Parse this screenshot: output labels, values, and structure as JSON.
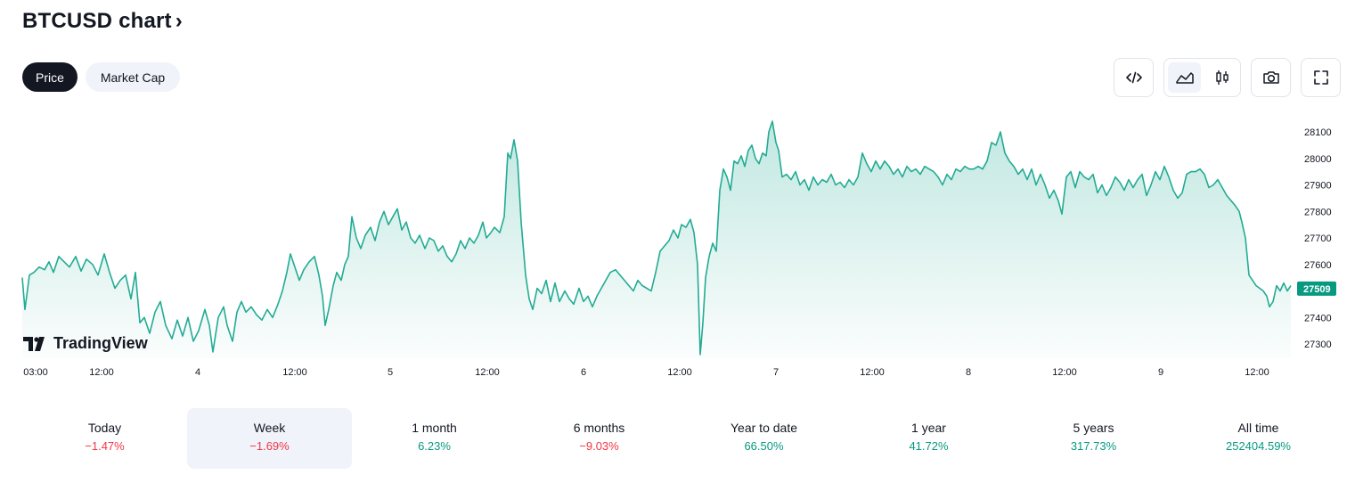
{
  "header": {
    "title": "BTCUSD chart",
    "chevron": "›"
  },
  "tabs": [
    {
      "label": "Price",
      "active": true
    },
    {
      "label": "Market Cap",
      "active": false
    }
  ],
  "toolbar": {
    "embed_icon": "code-icon",
    "area_icon": "area-chart-icon",
    "candles_icon": "candlestick-icon",
    "snapshot_icon": "camera-icon",
    "fullscreen_icon": "fullscreen-icon"
  },
  "logo": {
    "text": "TradingView"
  },
  "colors": {
    "line": "#22ab94",
    "accent": "#089981",
    "negative": "#f23645"
  },
  "chart_data": {
    "type": "area",
    "y_ticks": [
      "28100",
      "28000",
      "27900",
      "27800",
      "27700",
      "27600",
      "27500",
      "27400",
      "27300"
    ],
    "y_range": [
      27250,
      28150
    ],
    "last_price": "27509",
    "x_ticks": [
      "03:00",
      "12:00",
      "4",
      "12:00",
      "5",
      "12:00",
      "6",
      "12:00",
      "7",
      "12:00",
      "8",
      "12:00",
      "9",
      "12:00"
    ],
    "series": [
      {
        "points": [
          [
            0,
            27550
          ],
          [
            3,
            27430
          ],
          [
            8,
            27560
          ],
          [
            13,
            27570
          ],
          [
            19,
            27590
          ],
          [
            25,
            27580
          ],
          [
            30,
            27610
          ],
          [
            35,
            27570
          ],
          [
            41,
            27630
          ],
          [
            47,
            27610
          ],
          [
            53,
            27590
          ],
          [
            60,
            27630
          ],
          [
            66,
            27575
          ],
          [
            72,
            27620
          ],
          [
            79,
            27600
          ],
          [
            85,
            27560
          ],
          [
            92,
            27640
          ],
          [
            98,
            27570
          ],
          [
            104,
            27510
          ],
          [
            110,
            27540
          ],
          [
            116,
            27560
          ],
          [
            122,
            27470
          ],
          [
            127,
            27570
          ],
          [
            132,
            27380
          ],
          [
            137,
            27400
          ],
          [
            143,
            27340
          ],
          [
            149,
            27420
          ],
          [
            155,
            27460
          ],
          [
            161,
            27370
          ],
          [
            168,
            27320
          ],
          [
            174,
            27390
          ],
          [
            180,
            27330
          ],
          [
            186,
            27400
          ],
          [
            192,
            27310
          ],
          [
            198,
            27350
          ],
          [
            205,
            27430
          ],
          [
            210,
            27370
          ],
          [
            214,
            27270
          ],
          [
            220,
            27400
          ],
          [
            226,
            27440
          ],
          [
            230,
            27370
          ],
          [
            236,
            27310
          ],
          [
            241,
            27420
          ],
          [
            246,
            27460
          ],
          [
            251,
            27420
          ],
          [
            257,
            27440
          ],
          [
            263,
            27410
          ],
          [
            269,
            27390
          ],
          [
            275,
            27430
          ],
          [
            281,
            27400
          ],
          [
            287,
            27450
          ],
          [
            292,
            27500
          ],
          [
            297,
            27570
          ],
          [
            301,
            27640
          ],
          [
            306,
            27590
          ],
          [
            311,
            27540
          ],
          [
            316,
            27580
          ],
          [
            322,
            27610
          ],
          [
            328,
            27630
          ],
          [
            333,
            27560
          ],
          [
            337,
            27480
          ],
          [
            340,
            27370
          ],
          [
            344,
            27430
          ],
          [
            349,
            27520
          ],
          [
            353,
            27570
          ],
          [
            358,
            27540
          ],
          [
            362,
            27600
          ],
          [
            366,
            27630
          ],
          [
            370,
            27780
          ],
          [
            375,
            27700
          ],
          [
            380,
            27660
          ],
          [
            385,
            27710
          ],
          [
            391,
            27740
          ],
          [
            396,
            27690
          ],
          [
            401,
            27760
          ],
          [
            406,
            27800
          ],
          [
            411,
            27750
          ],
          [
            416,
            27780
          ],
          [
            421,
            27810
          ],
          [
            426,
            27730
          ],
          [
            431,
            27760
          ],
          [
            436,
            27700
          ],
          [
            441,
            27680
          ],
          [
            446,
            27710
          ],
          [
            452,
            27660
          ],
          [
            457,
            27700
          ],
          [
            462,
            27690
          ],
          [
            467,
            27650
          ],
          [
            472,
            27670
          ],
          [
            477,
            27630
          ],
          [
            482,
            27610
          ],
          [
            487,
            27640
          ],
          [
            492,
            27690
          ],
          [
            497,
            27660
          ],
          [
            502,
            27700
          ],
          [
            507,
            27680
          ],
          [
            512,
            27710
          ],
          [
            517,
            27760
          ],
          [
            521,
            27700
          ],
          [
            526,
            27720
          ],
          [
            530,
            27740
          ],
          [
            536,
            27720
          ],
          [
            541,
            27780
          ],
          [
            545,
            28020
          ],
          [
            548,
            28000
          ],
          [
            552,
            28070
          ],
          [
            556,
            27990
          ],
          [
            560,
            27760
          ],
          [
            565,
            27560
          ],
          [
            569,
            27470
          ],
          [
            573,
            27430
          ],
          [
            578,
            27510
          ],
          [
            583,
            27490
          ],
          [
            588,
            27540
          ],
          [
            593,
            27460
          ],
          [
            598,
            27530
          ],
          [
            603,
            27460
          ],
          [
            609,
            27500
          ],
          [
            614,
            27470
          ],
          [
            619,
            27450
          ],
          [
            625,
            27510
          ],
          [
            630,
            27460
          ],
          [
            635,
            27480
          ],
          [
            640,
            27440
          ],
          [
            645,
            27480
          ],
          [
            650,
            27510
          ],
          [
            655,
            27540
          ],
          [
            660,
            27570
          ],
          [
            666,
            27580
          ],
          [
            671,
            27560
          ],
          [
            676,
            27540
          ],
          [
            681,
            27520
          ],
          [
            686,
            27500
          ],
          [
            691,
            27540
          ],
          [
            696,
            27520
          ],
          [
            701,
            27510
          ],
          [
            706,
            27500
          ],
          [
            711,
            27570
          ],
          [
            716,
            27650
          ],
          [
            721,
            27670
          ],
          [
            726,
            27690
          ],
          [
            731,
            27730
          ],
          [
            736,
            27700
          ],
          [
            740,
            27750
          ],
          [
            745,
            27740
          ],
          [
            750,
            27770
          ],
          [
            754,
            27720
          ],
          [
            758,
            27600
          ],
          [
            761,
            27260
          ],
          [
            764,
            27380
          ],
          [
            767,
            27550
          ],
          [
            771,
            27630
          ],
          [
            775,
            27680
          ],
          [
            779,
            27650
          ],
          [
            783,
            27880
          ],
          [
            787,
            27960
          ],
          [
            791,
            27930
          ],
          [
            795,
            27880
          ],
          [
            799,
            27990
          ],
          [
            803,
            27980
          ],
          [
            807,
            28010
          ],
          [
            811,
            27970
          ],
          [
            815,
            28030
          ],
          [
            819,
            28050
          ],
          [
            823,
            28000
          ],
          [
            827,
            27980
          ],
          [
            831,
            28020
          ],
          [
            835,
            28010
          ],
          [
            838,
            28100
          ],
          [
            842,
            28140
          ],
          [
            846,
            28060
          ],
          [
            849,
            28030
          ],
          [
            853,
            27930
          ],
          [
            858,
            27940
          ],
          [
            863,
            27920
          ],
          [
            868,
            27950
          ],
          [
            873,
            27900
          ],
          [
            878,
            27920
          ],
          [
            883,
            27880
          ],
          [
            888,
            27930
          ],
          [
            893,
            27900
          ],
          [
            898,
            27920
          ],
          [
            903,
            27910
          ],
          [
            908,
            27940
          ],
          [
            913,
            27900
          ],
          [
            918,
            27910
          ],
          [
            923,
            27890
          ],
          [
            928,
            27920
          ],
          [
            933,
            27900
          ],
          [
            938,
            27930
          ],
          [
            943,
            28020
          ],
          [
            948,
            27980
          ],
          [
            953,
            27950
          ],
          [
            958,
            27990
          ],
          [
            963,
            27960
          ],
          [
            968,
            27990
          ],
          [
            973,
            27970
          ],
          [
            978,
            27940
          ],
          [
            983,
            27960
          ],
          [
            988,
            27930
          ],
          [
            993,
            27970
          ],
          [
            998,
            27950
          ],
          [
            1003,
            27960
          ],
          [
            1008,
            27940
          ],
          [
            1013,
            27970
          ],
          [
            1018,
            27960
          ],
          [
            1023,
            27950
          ],
          [
            1028,
            27930
          ],
          [
            1033,
            27900
          ],
          [
            1038,
            27940
          ],
          [
            1043,
            27920
          ],
          [
            1048,
            27960
          ],
          [
            1053,
            27950
          ],
          [
            1058,
            27970
          ],
          [
            1063,
            27960
          ],
          [
            1068,
            27960
          ],
          [
            1073,
            27970
          ],
          [
            1078,
            27960
          ],
          [
            1083,
            27990
          ],
          [
            1088,
            28060
          ],
          [
            1093,
            28050
          ],
          [
            1098,
            28100
          ],
          [
            1103,
            28020
          ],
          [
            1108,
            27990
          ],
          [
            1113,
            27970
          ],
          [
            1118,
            27940
          ],
          [
            1123,
            27960
          ],
          [
            1128,
            27920
          ],
          [
            1133,
            27960
          ],
          [
            1138,
            27900
          ],
          [
            1143,
            27940
          ],
          [
            1148,
            27900
          ],
          [
            1153,
            27850
          ],
          [
            1158,
            27880
          ],
          [
            1163,
            27840
          ],
          [
            1167,
            27790
          ],
          [
            1172,
            27930
          ],
          [
            1177,
            27950
          ],
          [
            1182,
            27890
          ],
          [
            1187,
            27950
          ],
          [
            1192,
            27930
          ],
          [
            1197,
            27920
          ],
          [
            1202,
            27940
          ],
          [
            1207,
            27870
          ],
          [
            1212,
            27900
          ],
          [
            1217,
            27860
          ],
          [
            1222,
            27890
          ],
          [
            1227,
            27930
          ],
          [
            1232,
            27910
          ],
          [
            1237,
            27880
          ],
          [
            1242,
            27920
          ],
          [
            1247,
            27890
          ],
          [
            1252,
            27920
          ],
          [
            1257,
            27940
          ],
          [
            1262,
            27860
          ],
          [
            1267,
            27900
          ],
          [
            1272,
            27950
          ],
          [
            1277,
            27920
          ],
          [
            1282,
            27970
          ],
          [
            1287,
            27930
          ],
          [
            1292,
            27880
          ],
          [
            1297,
            27850
          ],
          [
            1302,
            27870
          ],
          [
            1307,
            27940
          ],
          [
            1312,
            27950
          ],
          [
            1317,
            27950
          ],
          [
            1322,
            27960
          ],
          [
            1327,
            27940
          ],
          [
            1332,
            27890
          ],
          [
            1337,
            27900
          ],
          [
            1342,
            27920
          ],
          [
            1347,
            27890
          ],
          [
            1352,
            27860
          ],
          [
            1357,
            27840
          ],
          [
            1362,
            27820
          ],
          [
            1366,
            27800
          ],
          [
            1369,
            27760
          ],
          [
            1373,
            27700
          ],
          [
            1377,
            27560
          ],
          [
            1381,
            27540
          ],
          [
            1385,
            27520
          ],
          [
            1389,
            27510
          ],
          [
            1393,
            27500
          ],
          [
            1397,
            27480
          ],
          [
            1400,
            27440
          ],
          [
            1404,
            27460
          ],
          [
            1408,
            27520
          ],
          [
            1412,
            27500
          ],
          [
            1416,
            27530
          ],
          [
            1420,
            27500
          ],
          [
            1424,
            27520
          ]
        ]
      }
    ],
    "grid": false
  },
  "periods": [
    {
      "label": "Today",
      "value": "−1.47%",
      "trend": "neg",
      "selected": false
    },
    {
      "label": "Week",
      "value": "−1.69%",
      "trend": "neg",
      "selected": true
    },
    {
      "label": "1 month",
      "value": "6.23%",
      "trend": "pos",
      "selected": false
    },
    {
      "label": "6 months",
      "value": "−9.03%",
      "trend": "neg",
      "selected": false
    },
    {
      "label": "Year to date",
      "value": "66.50%",
      "trend": "pos",
      "selected": false
    },
    {
      "label": "1 year",
      "value": "41.72%",
      "trend": "pos",
      "selected": false
    },
    {
      "label": "5 years",
      "value": "317.73%",
      "trend": "pos",
      "selected": false
    },
    {
      "label": "All time",
      "value": "252404.59%",
      "trend": "pos",
      "selected": false
    }
  ]
}
